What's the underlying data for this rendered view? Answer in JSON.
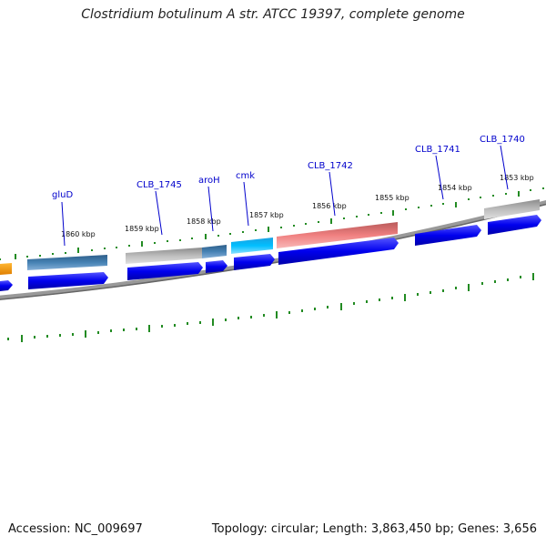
{
  "title": "Clostridium botulinum A str. ATCC 19397, complete genome",
  "footer": {
    "accession": "Accession: NC_009697",
    "topology": "Topology: circular; Length: 3,863,450 bp; Genes: 3,656"
  },
  "scale_labels": [
    "1860 kbp",
    "1859 kbp",
    "1858 kbp",
    "1857 kbp",
    "1856 kbp",
    "1855 kbp",
    "1854 kbp",
    "1853 kbp"
  ],
  "gene_labels": [
    "gluD",
    "CLB_1745",
    "aroH",
    "cmk",
    "CLB_1742",
    "CLB_1741",
    "CLB_1740"
  ],
  "colors": {
    "cds_blue": "#0000ee",
    "feature_steelblue": "#4682b4",
    "feature_gray": "#b8b8b8",
    "feature_cyan": "#00bfff",
    "feature_pink": "#f08080",
    "feature_orange": "#ff9900",
    "tick_green": "#228b22",
    "backbone_gray": "#777777",
    "label_blue": "#0000cc"
  }
}
